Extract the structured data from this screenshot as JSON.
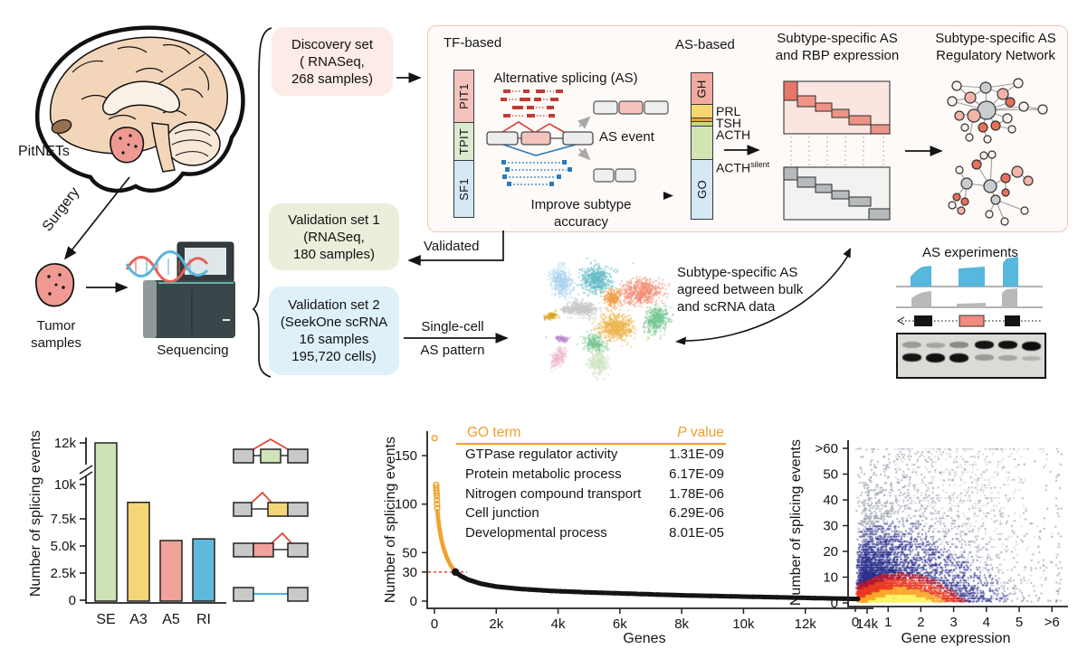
{
  "workflow": {
    "pitnets": "PitNETs",
    "surgery": "Surgery",
    "tumor_samples": [
      "Tumor",
      "samples"
    ],
    "sequencing": "Sequencing",
    "discovery_box": [
      "Discovery set",
      "( RNASeq,",
      "268 samples)"
    ],
    "validation1_box": [
      "Validation set 1",
      "(RNASeq,",
      "180 samples)"
    ],
    "validation2_box": [
      "Validation set 2",
      "(SeekOne scRNA",
      "16 samples",
      "195,720 cells)"
    ],
    "validated": "Validated",
    "single_cell": [
      "Single-cell",
      "AS pattern"
    ],
    "tf_based": "TF-based",
    "tf_sections": [
      "PIT1",
      "TPIT",
      "SF1"
    ],
    "alt_splicing": "Alternative splicing (AS)",
    "as_event": "AS event",
    "improve": "Improve subtype accuracy",
    "as_based": "AS-based",
    "as_sections": {
      "gh": "GH",
      "go": "GO"
    },
    "as_labels": {
      "prl": "PRL",
      "tsh": "TSH",
      "acth": "ACTH",
      "acth_silent_base": "ACTH",
      "acth_silent_sup": "silent"
    },
    "rbp_title": [
      "Subtype-specific AS",
      "and RBP expression"
    ],
    "network_title": [
      "Subtype-specific AS",
      "Regulatory Network"
    ],
    "agreement": [
      "Subtype-specific AS",
      "agreed between bulk",
      "and scRNA data"
    ],
    "as_experiments": "AS experiments",
    "box_colors": {
      "discovery": "#fcebe6",
      "validation1": "#e9efdb",
      "validation2": "#def0f8",
      "panel_border": "#f2c5b5"
    }
  },
  "chart_data": [
    {
      "type": "bar",
      "ylabel": "Number of splicing events",
      "categories": [
        "SE",
        "A3",
        "A5",
        "RI"
      ],
      "values": [
        12100,
        8700,
        5500,
        5650
      ],
      "bar_colors": [
        "#cde3b5",
        "#f3d678",
        "#f1a29b",
        "#5fb9dd"
      ],
      "ytick_labels": [
        "0",
        "2.5k",
        "5.0k",
        "7.5k",
        "10k",
        "12k"
      ],
      "ytick_values": [
        0,
        2500,
        5000,
        7500,
        10000,
        12000
      ],
      "axis_break_between": [
        10000,
        12000
      ]
    },
    {
      "type": "scatter",
      "xlabel": "Genes",
      "ylabel": "Number of splicing events",
      "xtick_labels": [
        "0",
        "2k",
        "4k",
        "6k",
        "8k",
        "10k",
        "12k",
        "14k"
      ],
      "xtick_values": [
        0,
        2000,
        4000,
        6000,
        8000,
        10000,
        12000,
        14000
      ],
      "ytick_labels": [
        "0",
        "30",
        "50",
        "100",
        "150"
      ],
      "ytick_values": [
        0,
        30,
        50,
        100,
        150
      ],
      "xlim": [
        0,
        14000
      ],
      "ylim": [
        0,
        175
      ],
      "threshold_value": 30,
      "threshold_rank": 680,
      "above_color": "#f0a330",
      "below_color": "#141414",
      "threshold_line_color": "#f04e3e",
      "outlier_points": [
        [
          5,
          168
        ],
        [
          55,
          120
        ],
        [
          60,
          117
        ],
        [
          65,
          114
        ],
        [
          70,
          111
        ],
        [
          75,
          108
        ],
        [
          80,
          104
        ],
        [
          85,
          100
        ],
        [
          90,
          96
        ]
      ],
      "curve_points": [
        [
          95,
          93
        ],
        [
          120,
          85
        ],
        [
          160,
          75
        ],
        [
          220,
          64
        ],
        [
          300,
          54
        ],
        [
          400,
          45
        ],
        [
          520,
          37
        ],
        [
          680,
          30
        ],
        [
          850,
          26
        ],
        [
          1100,
          22
        ],
        [
          1500,
          18
        ],
        [
          2000,
          15
        ],
        [
          2800,
          12.5
        ],
        [
          3800,
          10.5
        ],
        [
          5000,
          9
        ],
        [
          6500,
          7.5
        ],
        [
          8000,
          6
        ],
        [
          9500,
          5
        ],
        [
          11000,
          4
        ],
        [
          12500,
          3
        ],
        [
          13700,
          2.2
        ]
      ],
      "go_table": {
        "accent_color": "#ef9f2e",
        "header": {
          "term": "GO term",
          "p_italic": "P",
          "p_rest": " value"
        },
        "rows": [
          {
            "term": "GTPase regulator activity",
            "p": "1.31E-09"
          },
          {
            "term": "Protein metabolic process",
            "p": "6.17E-09"
          },
          {
            "term": "Nitrogen compound transport",
            "p": "1.78E-06"
          },
          {
            "term": "Cell junction",
            "p": "6.29E-06"
          },
          {
            "term": "Developmental process",
            "p": "8.01E-05"
          }
        ]
      }
    },
    {
      "type": "heatmap",
      "subtype": "density-scatter",
      "xlabel": "Gene expression",
      "ylabel": "Number of splicing events",
      "xtick_labels": [
        "0",
        "1",
        "2",
        "3",
        "4",
        "5",
        ">6"
      ],
      "xtick_values": [
        0,
        1,
        2,
        3,
        4,
        5,
        6
      ],
      "ytick_labels": [
        "0",
        "10",
        "20",
        "30",
        "40",
        "50",
        ">60"
      ],
      "ytick_values": [
        0,
        10,
        20,
        30,
        40,
        50,
        60
      ],
      "density_peak": {
        "gene_expression": 1.2,
        "splicing_events": 2
      },
      "palette": [
        "#fcf46b",
        "#f9a82b",
        "#ea3b24",
        "#b01730",
        "#2a2f8c",
        "#53599c",
        "#8e94a4"
      ]
    }
  ]
}
